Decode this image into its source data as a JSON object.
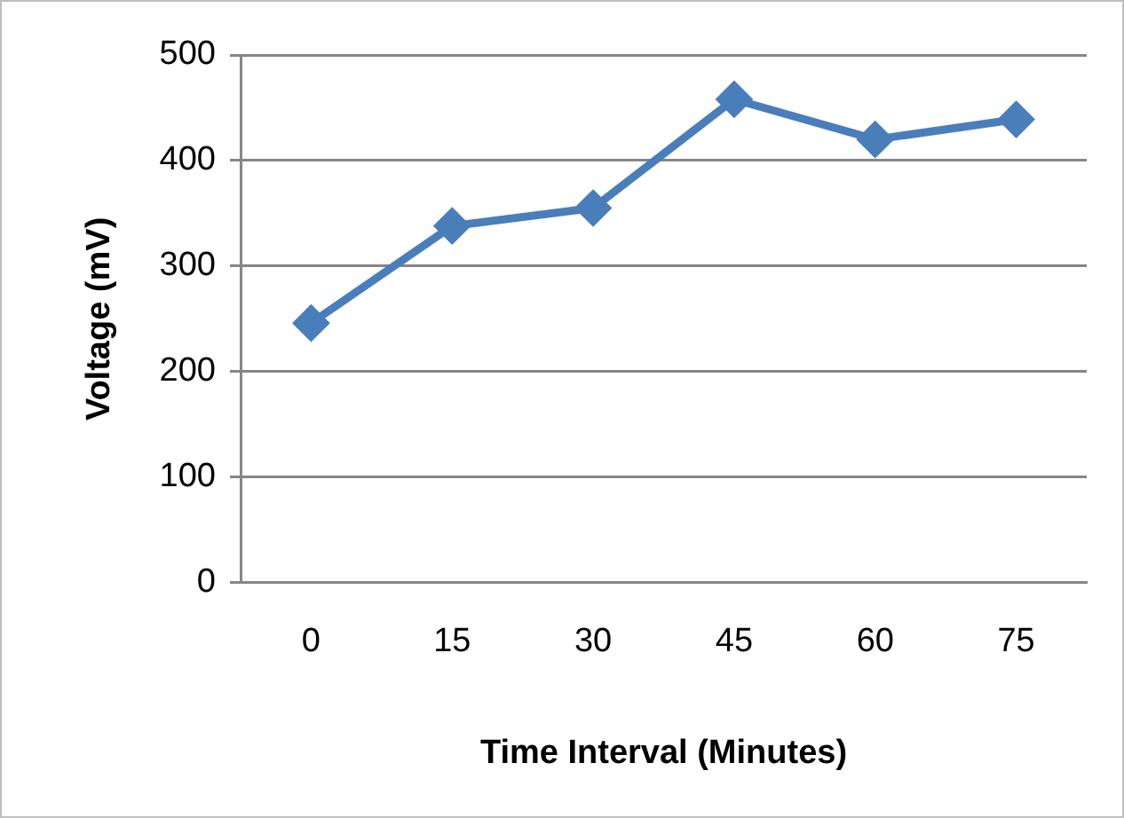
{
  "chart_data": {
    "type": "line",
    "xlabel": "Time Interval (Minutes)",
    "ylabel": "Voltage (mV)",
    "categories": [
      "0",
      "15",
      "30",
      "45",
      "60",
      "75"
    ],
    "series": [
      {
        "color": "#4a7ebb",
        "values": [
          246,
          338,
          355,
          458,
          420,
          439
        ]
      }
    ],
    "ylim": [
      0,
      500
    ],
    "yticks": [
      0,
      100,
      200,
      300,
      400,
      500
    ],
    "grid": "y",
    "legend": false,
    "marker": "diamond",
    "line_style": "solid"
  }
}
